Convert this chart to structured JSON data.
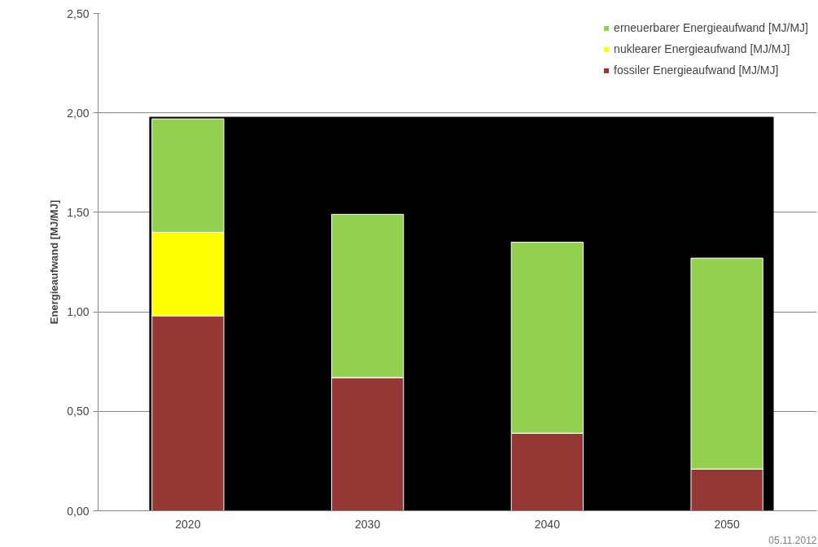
{
  "chart_data": {
    "type": "bar",
    "stacked": true,
    "ylabel": "Energieaufwand [MJ/MJ]",
    "categories": [
      "2020",
      "2030",
      "2040",
      "2050"
    ],
    "series": [
      {
        "name": "fossiler Energieaufwand [MJ/MJ]",
        "color": "#953735",
        "values": [
          0.98,
          0.67,
          0.39,
          0.21
        ]
      },
      {
        "name": "nuklearer Energieaufwand [MJ/MJ]",
        "color": "#ffff00",
        "values": [
          0.42,
          0,
          0,
          0
        ]
      },
      {
        "name": "erneuerbarer Energieaufwand [MJ/MJ]",
        "color": "#92d050",
        "values": [
          0.57,
          0.82,
          0.96,
          1.06
        ]
      }
    ],
    "ylim": [
      0,
      2.5
    ],
    "yticks": [
      {
        "value": 0,
        "label": "0,00"
      },
      {
        "value": 0.5,
        "label": "0,50"
      },
      {
        "value": 1,
        "label": "1,00"
      },
      {
        "value": 1.5,
        "label": "1,50"
      },
      {
        "value": 2,
        "label": "2,00"
      },
      {
        "value": 2.5,
        "label": "2,50"
      }
    ],
    "grid": "y",
    "legend": "top right",
    "bands": [
      {
        "axis": "y",
        "from": 0,
        "to": 1.98,
        "color": "#000000"
      }
    ],
    "annotations": [
      "05.11.2012"
    ]
  }
}
